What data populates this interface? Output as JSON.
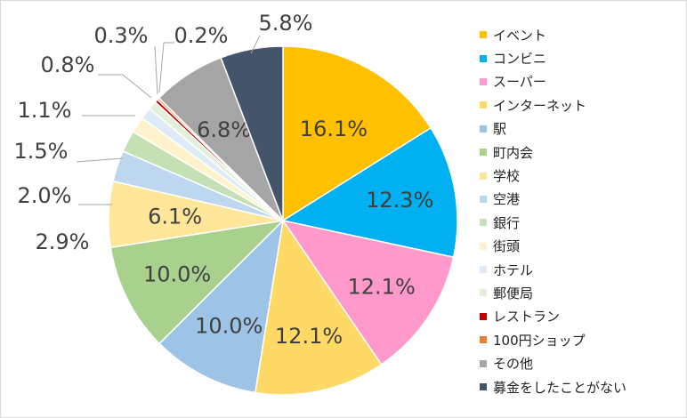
{
  "chart_data": {
    "type": "pie",
    "title": "",
    "legend_position": "right",
    "slices": [
      {
        "label": "イベント",
        "value": 16.1,
        "value_label": "16.1%",
        "color": "#FFC000"
      },
      {
        "label": "コンビニ",
        "value": 12.3,
        "value_label": "12.3%",
        "color": "#00B0F0"
      },
      {
        "label": "スーパー",
        "value": 12.1,
        "value_label": "12.1%",
        "color": "#FF99CC"
      },
      {
        "label": "インターネット",
        "value": 12.1,
        "value_label": "12.1%",
        "color": "#FFD966"
      },
      {
        "label": "駅",
        "value": 10.0,
        "value_label": "10.0%",
        "color": "#9DC3E6"
      },
      {
        "label": "町内会",
        "value": 10.0,
        "value_label": "10.0%",
        "color": "#A9D18E"
      },
      {
        "label": "学校",
        "value": 6.1,
        "value_label": "6.1%",
        "color": "#FFE699"
      },
      {
        "label": "空港",
        "value": 2.9,
        "value_label": "2.9%",
        "color": "#BDD7EE"
      },
      {
        "label": "銀行",
        "value": 2.0,
        "value_label": "2.0%",
        "color": "#C5E0B4"
      },
      {
        "label": "街頭",
        "value": 1.5,
        "value_label": "1.5%",
        "color": "#FFF2CC"
      },
      {
        "label": "ホテル",
        "value": 1.1,
        "value_label": "1.1%",
        "color": "#DEEBF7"
      },
      {
        "label": "郵便局",
        "value": 0.8,
        "value_label": "0.8%",
        "color": "#E2F0D9"
      },
      {
        "label": "レストラン",
        "value": 0.3,
        "value_label": "0.3%",
        "color": "#C00000"
      },
      {
        "label": "100円ショップ",
        "value": 0.2,
        "value_label": "0.2%",
        "color": "#ED7D31"
      },
      {
        "label": "その他",
        "value": 6.8,
        "value_label": "6.8%",
        "color": "#A5A5A5"
      },
      {
        "label": "募金をしたことがない",
        "value": 5.8,
        "value_label": "5.8%",
        "color": "#44546A"
      }
    ]
  }
}
